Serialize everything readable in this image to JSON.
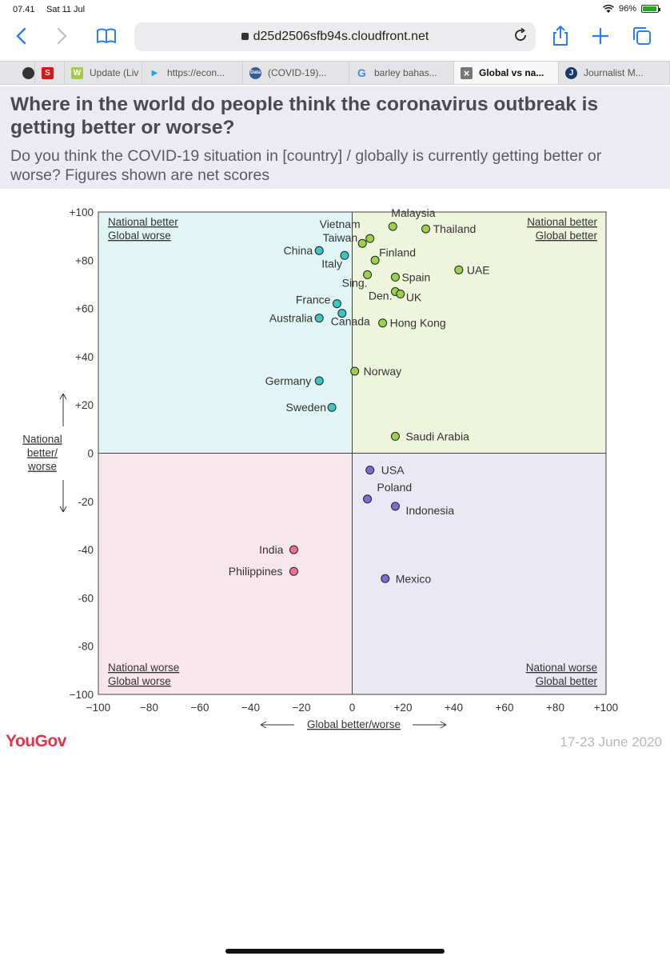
{
  "status_bar": {
    "time": "07.41",
    "date": "Sat 11 Jul",
    "battery": "96%"
  },
  "browser": {
    "url": "d25d2506sfb94s.cloudfront.net",
    "tabs": [
      {
        "label": "",
        "favicon": "globe",
        "color": "#333333",
        "active": false,
        "width": 44
      },
      {
        "label": "",
        "favicon": "S",
        "color": "#d11b1b",
        "active": false,
        "width": 37
      },
      {
        "label": "Update (Liv",
        "favicon": "W",
        "color": "#a8c84a",
        "active": false,
        "width": 97
      },
      {
        "label": "https://econ...",
        "favicon": "twitter",
        "color": "#1da1f2",
        "active": false,
        "width": 126
      },
      {
        "label": "(COVID-19)...",
        "favicon": "Data",
        "color": "#3a5a99",
        "active": false,
        "width": 133
      },
      {
        "label": "barley bahas...",
        "favicon": "G",
        "color": "#4285f4",
        "active": false,
        "width": 131
      },
      {
        "label": "Global vs na...",
        "favicon": "x",
        "color": "#777777",
        "active": true,
        "width": 131
      },
      {
        "label": "Journalist M...",
        "favicon": "J",
        "color": "#1a3a6a",
        "active": false,
        "width": 139
      }
    ]
  },
  "header": {
    "title": "Where in the world do people think the coronavirus outbreak is getting better or worse?",
    "subtitle": "Do you think the COVID-19 situation in [country] / globally is currently getting better or worse? Figures shown are net scores"
  },
  "chart_data": {
    "type": "scatter",
    "xlabel": "Global better/worse",
    "ylabel": "National better/ worse",
    "xlim": [
      -100,
      100
    ],
    "ylim": [
      -100,
      100
    ],
    "x_ticks": [
      "−100",
      "−80",
      "−60",
      "−40",
      "−20",
      "0",
      "+20",
      "+40",
      "+60",
      "+80",
      "+100"
    ],
    "y_ticks": [
      "+100",
      "+80",
      "+60",
      "+40",
      "+20",
      "0",
      "-20",
      "-40",
      "-60",
      "-80",
      "−100"
    ],
    "quadrants": {
      "top_left": {
        "line1": "National better",
        "line2": "Global worse",
        "color": "#e2f5f5"
      },
      "top_right": {
        "line1": "National better",
        "line2": "Global better",
        "color": "#eef5dc"
      },
      "bottom_left": {
        "line1": "National worse",
        "line2": "Global worse",
        "color": "#f7e7ec"
      },
      "bottom_right": {
        "line1": "National worse",
        "line2": "Global better",
        "color": "#e9e8f3"
      }
    },
    "points": [
      {
        "label": "Malaysia",
        "x": 16,
        "y": 94
      },
      {
        "label": "Thailand",
        "x": 29,
        "y": 93
      },
      {
        "label": "Vietnam",
        "x": 7,
        "y": 89
      },
      {
        "label": "Taiwan",
        "x": 4,
        "y": 87
      },
      {
        "label": "Finland",
        "x": 9,
        "y": 80
      },
      {
        "label": "China",
        "x": -13,
        "y": 84
      },
      {
        "label": "Italy",
        "x": -3,
        "y": 82
      },
      {
        "label": "UAE",
        "x": 42,
        "y": 76
      },
      {
        "label": "Spain",
        "x": 17,
        "y": 73
      },
      {
        "label": "Sing.",
        "x": 6,
        "y": 74
      },
      {
        "label": "Den.",
        "x": 17,
        "y": 67
      },
      {
        "label": "UK",
        "x": 19,
        "y": 66
      },
      {
        "label": "France",
        "x": -6,
        "y": 62
      },
      {
        "label": "Australia",
        "x": -13,
        "y": 56
      },
      {
        "label": "Canada",
        "x": -4,
        "y": 58
      },
      {
        "label": "Hong Kong",
        "x": 12,
        "y": 54
      },
      {
        "label": "Norway",
        "x": 1,
        "y": 34
      },
      {
        "label": "Germany",
        "x": -13,
        "y": 30
      },
      {
        "label": "Sweden",
        "x": -8,
        "y": 19
      },
      {
        "label": "Saudi Arabia",
        "x": 17,
        "y": 7
      },
      {
        "label": "USA",
        "x": 7,
        "y": -7
      },
      {
        "label": "Poland",
        "x": 6,
        "y": -19
      },
      {
        "label": "Indonesia",
        "x": 17,
        "y": -22
      },
      {
        "label": "India",
        "x": -23,
        "y": -40
      },
      {
        "label": "Philippines",
        "x": -23,
        "y": -49
      },
      {
        "label": "Mexico",
        "x": 13,
        "y": -52
      }
    ],
    "point_colors": {
      "top_left": "#3ec4c4",
      "top_right": "#9bd04a",
      "bottom_left": "#f06f8e",
      "bottom_right": "#7c6bd0"
    }
  },
  "footer": {
    "brand": "YouGov",
    "date": "17-23 June 2020"
  }
}
